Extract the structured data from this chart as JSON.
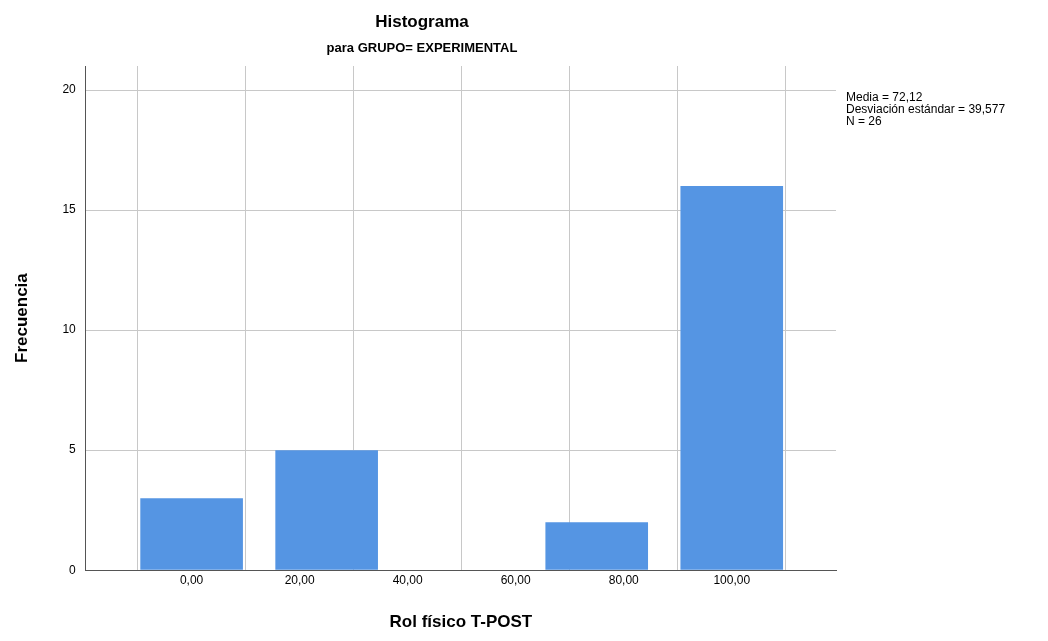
{
  "chart_data": {
    "type": "histogram",
    "title": "Histograma",
    "subtitle": "para GRUPO= EXPERIMENTAL",
    "xlabel": "Rol físico T-POST",
    "ylabel": "Frecuencia",
    "annotations": [
      "Media = 72,12",
      "Desviación estándar = 39,577",
      "N = 26"
    ],
    "bins": [
      -12.5,
      12.5,
      37.5,
      62.5,
      87.5,
      112.5
    ],
    "values": [
      3,
      5,
      0,
      2,
      16
    ],
    "color": "#5595e3",
    "xlim": [
      -19.6,
      119.3
    ],
    "xticks": [
      {
        "value": 0,
        "label": "0,00"
      },
      {
        "value": 20,
        "label": "20,00"
      },
      {
        "value": 40,
        "label": "40,00"
      },
      {
        "value": 60,
        "label": "60,00"
      },
      {
        "value": 80,
        "label": "80,00"
      },
      {
        "value": 100,
        "label": "100,00"
      }
    ],
    "ylim": [
      0,
      21
    ],
    "yticks": [
      0,
      5,
      10,
      15,
      20
    ],
    "grid": true,
    "legend": false
  }
}
